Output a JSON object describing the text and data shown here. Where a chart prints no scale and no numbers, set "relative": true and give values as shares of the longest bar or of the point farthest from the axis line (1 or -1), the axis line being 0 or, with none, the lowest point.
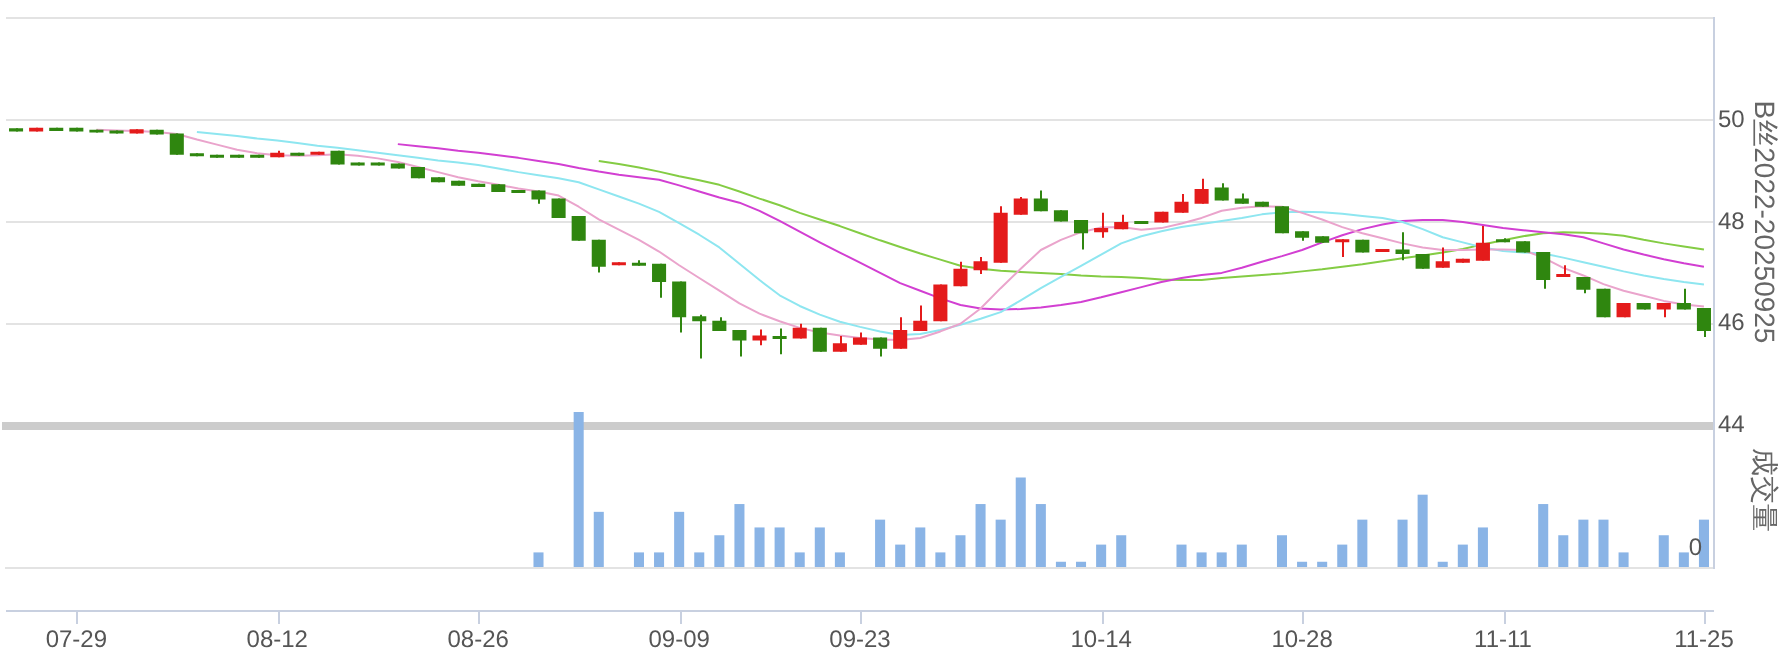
{
  "chart_data": [
    {
      "type": "candlestick",
      "ylabel": "B丝2022-20250925",
      "categories": [
        null,
        null,
        null,
        null,
        null,
        null,
        null,
        null,
        null,
        null,
        null,
        null,
        null,
        null,
        null,
        null,
        null,
        null,
        null,
        null,
        null,
        null,
        null,
        null,
        null,
        null,
        null,
        null,
        null,
        null,
        null,
        null,
        null,
        null,
        null,
        null,
        null,
        null,
        null,
        null,
        null,
        null,
        null,
        null,
        null,
        null,
        null,
        null,
        null,
        null,
        null,
        null,
        null,
        null,
        null,
        null,
        null,
        null,
        null,
        null,
        null,
        null,
        null,
        null,
        null,
        null,
        null,
        null,
        null,
        null,
        null,
        null,
        null,
        null,
        null,
        null,
        null,
        null,
        null,
        null,
        null,
        null,
        null,
        null,
        null
      ],
      "ohlc": [
        [
          49.84,
          49.84,
          49.78,
          49.78
        ],
        [
          49.78,
          49.85,
          49.78,
          49.85
        ],
        [
          49.85,
          49.85,
          49.79,
          49.79
        ],
        [
          49.85,
          49.85,
          49.78,
          49.78
        ],
        [
          49.81,
          49.81,
          49.76,
          49.76
        ],
        [
          49.8,
          49.8,
          49.74,
          49.74
        ],
        [
          49.74,
          49.82,
          49.74,
          49.82
        ],
        [
          49.81,
          49.81,
          49.72,
          49.72
        ],
        [
          49.74,
          49.74,
          49.32,
          49.32
        ],
        [
          49.35,
          49.35,
          49.29,
          49.29
        ],
        [
          49.32,
          49.32,
          49.26,
          49.26
        ],
        [
          49.32,
          49.32,
          49.26,
          49.26
        ],
        [
          49.32,
          49.32,
          49.26,
          49.26
        ],
        [
          49.27,
          49.4,
          49.27,
          49.36
        ],
        [
          49.36,
          49.36,
          49.3,
          49.3
        ],
        [
          49.32,
          49.38,
          49.32,
          49.38
        ],
        [
          49.4,
          49.4,
          49.13,
          49.13
        ],
        [
          49.17,
          49.17,
          49.11,
          49.11
        ],
        [
          49.17,
          49.17,
          49.11,
          49.11
        ],
        [
          49.15,
          49.15,
          49.05,
          49.05
        ],
        [
          49.08,
          49.08,
          48.86,
          48.86
        ],
        [
          48.88,
          48.88,
          48.78,
          48.78
        ],
        [
          48.81,
          48.81,
          48.71,
          48.71
        ],
        [
          48.75,
          48.75,
          48.69,
          48.69
        ],
        [
          48.74,
          48.74,
          48.59,
          48.59
        ],
        [
          48.63,
          48.63,
          48.57,
          48.57
        ],
        [
          48.62,
          48.62,
          48.36,
          48.44
        ],
        [
          48.46,
          48.46,
          48.08,
          48.08
        ],
        [
          48.12,
          48.12,
          47.63,
          47.63
        ],
        [
          47.65,
          47.65,
          47.01,
          47.12
        ],
        [
          47.15,
          47.21,
          47.15,
          47.21
        ],
        [
          47.2,
          47.25,
          47.14,
          47.14
        ],
        [
          47.18,
          47.18,
          46.51,
          46.82
        ],
        [
          46.83,
          46.83,
          45.83,
          46.13
        ],
        [
          46.15,
          46.18,
          45.32,
          46.05
        ],
        [
          46.06,
          46.13,
          45.86,
          45.86
        ],
        [
          45.88,
          45.88,
          45.36,
          45.67
        ],
        [
          45.67,
          45.89,
          45.58,
          45.77
        ],
        [
          45.76,
          45.91,
          45.4,
          45.7
        ],
        [
          45.71,
          46.0,
          45.71,
          45.92
        ],
        [
          45.92,
          45.92,
          45.45,
          45.45
        ],
        [
          45.45,
          45.76,
          45.45,
          45.62
        ],
        [
          45.59,
          45.83,
          45.59,
          45.73
        ],
        [
          45.73,
          45.73,
          45.36,
          45.51
        ],
        [
          45.51,
          46.13,
          45.51,
          45.88
        ],
        [
          45.86,
          46.36,
          45.86,
          46.06
        ],
        [
          46.05,
          46.77,
          46.05,
          46.77
        ],
        [
          46.74,
          47.22,
          46.74,
          47.08
        ],
        [
          47.05,
          47.31,
          46.98,
          47.23
        ],
        [
          47.2,
          48.31,
          47.2,
          48.18
        ],
        [
          48.14,
          48.49,
          48.14,
          48.46
        ],
        [
          48.46,
          48.62,
          48.21,
          48.21
        ],
        [
          48.23,
          48.23,
          48.01,
          48.01
        ],
        [
          48.04,
          48.04,
          47.46,
          47.78
        ],
        [
          47.8,
          48.18,
          47.69,
          47.88
        ],
        [
          47.86,
          48.14,
          47.86,
          48.0
        ],
        [
          48.02,
          48.02,
          47.96,
          47.96
        ],
        [
          47.99,
          48.2,
          47.99,
          48.2
        ],
        [
          48.18,
          48.55,
          48.18,
          48.4
        ],
        [
          48.36,
          48.85,
          48.36,
          48.65
        ],
        [
          48.68,
          48.76,
          48.42,
          48.42
        ],
        [
          48.46,
          48.56,
          48.36,
          48.36
        ],
        [
          48.4,
          48.4,
          48.3,
          48.3
        ],
        [
          48.31,
          48.31,
          47.78,
          47.78
        ],
        [
          47.82,
          47.82,
          47.63,
          47.69
        ],
        [
          47.72,
          47.72,
          47.59,
          47.59
        ],
        [
          47.6,
          47.66,
          47.31,
          47.66
        ],
        [
          47.65,
          47.65,
          47.4,
          47.4
        ],
        [
          47.41,
          47.47,
          47.41,
          47.47
        ],
        [
          47.46,
          47.8,
          47.25,
          47.37
        ],
        [
          47.37,
          47.37,
          47.08,
          47.08
        ],
        [
          47.1,
          47.5,
          47.1,
          47.23
        ],
        [
          47.2,
          47.28,
          47.2,
          47.28
        ],
        [
          47.24,
          47.92,
          47.24,
          47.59
        ],
        [
          47.66,
          47.68,
          47.6,
          47.6
        ],
        [
          47.62,
          47.62,
          47.4,
          47.4
        ],
        [
          47.41,
          47.41,
          46.69,
          46.86
        ],
        [
          46.92,
          47.15,
          46.92,
          46.98
        ],
        [
          46.92,
          46.92,
          46.6,
          46.67
        ],
        [
          46.69,
          46.69,
          46.13,
          46.13
        ],
        [
          46.13,
          46.41,
          46.13,
          46.41
        ],
        [
          46.41,
          46.41,
          46.28,
          46.28
        ],
        [
          46.28,
          46.41,
          46.13,
          46.41
        ],
        [
          46.41,
          46.69,
          46.28,
          46.28
        ],
        [
          46.31,
          46.31,
          45.74,
          45.86
        ]
      ],
      "colors": [
        "#2f860f",
        "#e41b1b",
        "#2f860f",
        "#2f860f",
        "#2f860f",
        "#2f860f",
        "#e41b1b",
        "#2f860f",
        "#2f860f",
        "#2f860f",
        "#2f860f",
        "#2f860f",
        "#2f860f",
        "#e41b1b",
        "#2f860f",
        "#e41b1b",
        "#2f860f",
        "#2f860f",
        "#2f860f",
        "#2f860f",
        "#2f860f",
        "#2f860f",
        "#2f860f",
        "#2f860f",
        "#2f860f",
        "#2f860f",
        "#2f860f",
        "#2f860f",
        "#2f860f",
        "#2f860f",
        "#e41b1b",
        "#2f860f",
        "#2f860f",
        "#2f860f",
        "#2f860f",
        "#2f860f",
        "#2f860f",
        "#e41b1b",
        "#2f860f",
        "#e41b1b",
        "#2f860f",
        "#e41b1b",
        "#e41b1b",
        "#2f860f",
        "#e41b1b",
        "#e41b1b",
        "#e41b1b",
        "#e41b1b",
        "#e41b1b",
        "#e41b1b",
        "#e41b1b",
        "#2f860f",
        "#2f860f",
        "#2f860f",
        "#e41b1b",
        "#e41b1b",
        "#2f860f",
        "#e41b1b",
        "#e41b1b",
        "#e41b1b",
        "#2f860f",
        "#2f860f",
        "#2f860f",
        "#2f860f",
        "#2f860f",
        "#2f860f",
        "#e41b1b",
        "#2f860f",
        "#e41b1b",
        "#2f860f",
        "#2f860f",
        "#e41b1b",
        "#e41b1b",
        "#e41b1b",
        "#2f860f",
        "#2f860f",
        "#2f860f",
        "#e41b1b",
        "#2f860f",
        "#2f860f",
        "#e41b1b",
        "#2f860f",
        "#e41b1b",
        "#2f860f",
        "#2f860f"
      ],
      "series": [
        {
          "type": "line",
          "color": "#eaa4cc",
          "values": [
            null,
            null,
            null,
            null,
            49.81,
            49.8,
            49.79,
            49.77,
            49.73,
            49.62,
            49.52,
            49.42,
            49.35,
            49.31,
            49.3,
            49.31,
            49.33,
            49.3,
            49.25,
            49.18,
            49.08,
            48.98,
            48.88,
            48.8,
            48.73,
            48.66,
            48.6,
            48.52,
            48.3,
            48.05,
            47.85,
            47.65,
            47.42,
            47.15,
            46.9,
            46.65,
            46.4,
            46.2,
            46.05,
            45.92,
            45.83,
            45.77,
            45.72,
            45.69,
            45.68,
            45.72,
            45.85,
            46.0,
            46.3,
            46.7,
            47.08,
            47.45,
            47.65,
            47.8,
            47.89,
            47.9,
            47.85,
            47.88,
            47.97,
            48.08,
            48.22,
            48.28,
            48.31,
            48.3,
            48.18,
            48.05,
            47.9,
            47.78,
            47.68,
            47.58,
            47.5,
            47.45,
            47.45,
            47.46,
            47.46,
            47.45,
            47.3,
            47.1,
            46.95,
            46.78,
            46.65,
            46.55,
            46.45,
            46.38,
            46.34
          ]
        },
        {
          "type": "line",
          "color": "#8ee6f0",
          "values": [
            null,
            null,
            null,
            null,
            null,
            null,
            null,
            null,
            null,
            49.77,
            49.73,
            49.69,
            49.64,
            49.6,
            49.55,
            49.5,
            49.46,
            49.41,
            49.36,
            49.31,
            49.26,
            49.21,
            49.17,
            49.12,
            49.05,
            48.98,
            48.92,
            48.86,
            48.78,
            48.64,
            48.5,
            48.36,
            48.2,
            47.98,
            47.75,
            47.5,
            47.18,
            46.86,
            46.56,
            46.35,
            46.18,
            46.04,
            45.94,
            45.85,
            45.78,
            45.8,
            45.88,
            45.98,
            46.1,
            46.23,
            46.46,
            46.7,
            46.92,
            47.14,
            47.36,
            47.58,
            47.72,
            47.82,
            47.9,
            47.96,
            48.02,
            48.08,
            48.15,
            48.19,
            48.2,
            48.19,
            48.16,
            48.12,
            48.08,
            48.0,
            47.86,
            47.7,
            47.6,
            47.5,
            47.43,
            47.4,
            47.38,
            47.3,
            47.21,
            47.12,
            47.03,
            46.95,
            46.88,
            46.82,
            46.77
          ]
        },
        {
          "type": "line",
          "color": "#d23fd2",
          "values": [
            null,
            null,
            null,
            null,
            null,
            null,
            null,
            null,
            null,
            null,
            null,
            null,
            null,
            null,
            null,
            null,
            null,
            null,
            null,
            49.53,
            49.49,
            49.45,
            49.4,
            49.36,
            49.31,
            49.26,
            49.2,
            49.14,
            49.06,
            48.99,
            48.93,
            48.88,
            48.83,
            48.72,
            48.6,
            48.48,
            48.38,
            48.22,
            48.02,
            47.81,
            47.6,
            47.4,
            47.2,
            47.0,
            46.8,
            46.65,
            46.5,
            46.37,
            46.3,
            46.28,
            46.29,
            46.32,
            46.37,
            46.43,
            46.52,
            46.62,
            46.72,
            46.82,
            46.9,
            46.96,
            47.0,
            47.1,
            47.22,
            47.33,
            47.45,
            47.6,
            47.74,
            47.86,
            47.95,
            48.02,
            48.04,
            48.04,
            48.0,
            47.94,
            47.88,
            47.84,
            47.8,
            47.76,
            47.7,
            47.58,
            47.46,
            47.36,
            47.27,
            47.19,
            47.12
          ]
        },
        {
          "type": "line",
          "color": "#84cc44",
          "values": [
            null,
            null,
            null,
            null,
            null,
            null,
            null,
            null,
            null,
            null,
            null,
            null,
            null,
            null,
            null,
            null,
            null,
            null,
            null,
            null,
            null,
            null,
            null,
            null,
            null,
            null,
            null,
            null,
            null,
            49.2,
            49.14,
            49.07,
            48.99,
            48.9,
            48.82,
            48.73,
            48.6,
            48.46,
            48.33,
            48.18,
            48.05,
            47.92,
            47.78,
            47.64,
            47.51,
            47.38,
            47.26,
            47.14,
            47.08,
            47.04,
            47.02,
            47.0,
            46.98,
            46.95,
            46.93,
            46.92,
            46.9,
            46.87,
            46.86,
            46.86,
            46.9,
            46.93,
            46.96,
            46.99,
            47.03,
            47.07,
            47.12,
            47.17,
            47.23,
            47.29,
            47.34,
            47.4,
            47.47,
            47.56,
            47.64,
            47.72,
            47.78,
            47.8,
            47.79,
            47.77,
            47.73,
            47.65,
            47.58,
            47.52,
            47.46
          ]
        }
      ],
      "ylim": [
        44,
        52
      ],
      "yticks": [
        44,
        46,
        48,
        50,
        {
          "value": 52,
          "label": null
        }
      ],
      "grid": "y",
      "tick_labels": "y"
    },
    {
      "type": "bar",
      "relative": true,
      "ylabel": "成交量",
      "color": "#8ab4e6",
      "annotations": [
        "0"
      ],
      "tick_labels": "x",
      "categories": [
        null,
        null,
        null,
        "07-29",
        null,
        null,
        null,
        null,
        null,
        null,
        null,
        null,
        null,
        "08-12",
        null,
        null,
        null,
        null,
        null,
        null,
        null,
        null,
        null,
        "08-26",
        null,
        null,
        null,
        null,
        null,
        null,
        null,
        null,
        null,
        "09-09",
        null,
        null,
        null,
        null,
        null,
        null,
        null,
        null,
        "09-23",
        null,
        null,
        null,
        null,
        null,
        null,
        null,
        null,
        null,
        null,
        null,
        "10-14",
        null,
        null,
        null,
        null,
        null,
        null,
        null,
        null,
        null,
        "10-28",
        null,
        null,
        null,
        null,
        null,
        null,
        null,
        null,
        null,
        "11-11",
        null,
        null,
        null,
        null,
        null,
        null,
        null,
        null,
        null,
        "11-25"
      ],
      "values": [
        null,
        null,
        null,
        null,
        null,
        null,
        null,
        null,
        null,
        null,
        null,
        null,
        null,
        null,
        null,
        null,
        null,
        null,
        null,
        null,
        null,
        null,
        null,
        null,
        null,
        null,
        0.1,
        null,
        1,
        0.36,
        null,
        0.1,
        0.1,
        0.36,
        0.1,
        0.21,
        0.41,
        0.26,
        0.26,
        0.1,
        0.26,
        0.1,
        null,
        0.31,
        0.15,
        0.26,
        0.1,
        0.21,
        0.41,
        0.31,
        0.58,
        0.41,
        0.04,
        0.04,
        0.15,
        0.21,
        null,
        null,
        0.15,
        0.1,
        0.1,
        0.15,
        null,
        0.21,
        0.04,
        0.04,
        0.15,
        0.31,
        null,
        0.31,
        0.47,
        0.04,
        0.15,
        0.26,
        null,
        null,
        0.41,
        0.21,
        0.31,
        0.31,
        0.1,
        null,
        0.21,
        0.1,
        0.31
      ]
    }
  ]
}
